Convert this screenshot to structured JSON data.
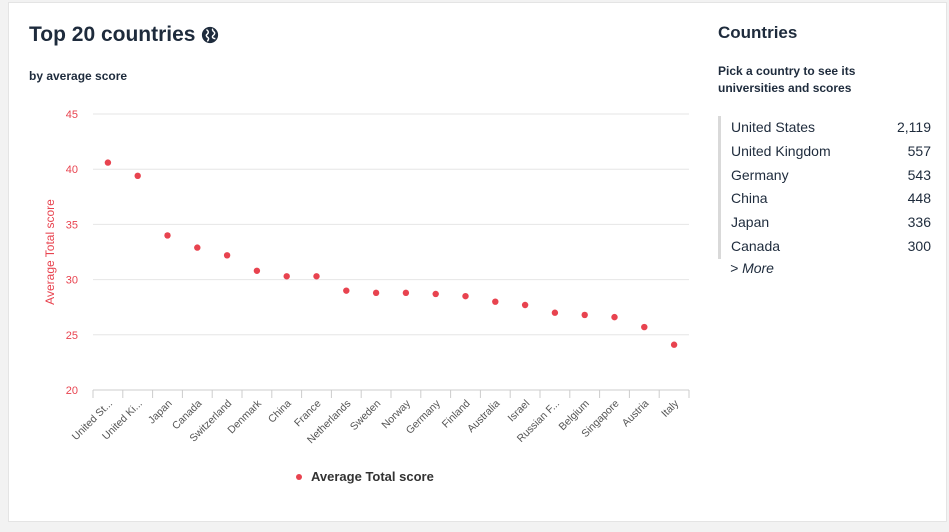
{
  "page": {
    "title": "Top 20 countries",
    "subtitle": "by average score"
  },
  "colors": {
    "accent": "#e8434f",
    "text": "#1e2b3c"
  },
  "chart_data": {
    "type": "scatter",
    "categories": [
      "United St...",
      "United Ki...",
      "Japan",
      "Canada",
      "Switzerland",
      "Denmark",
      "China",
      "France",
      "Netherlands",
      "Sweden",
      "Norway",
      "Germany",
      "Finland",
      "Australia",
      "Israel",
      "Russian F...",
      "Belgium",
      "Singapore",
      "Austria",
      "Italy"
    ],
    "series": [
      {
        "name": "Average Total score",
        "values": [
          40.6,
          39.4,
          34.0,
          32.9,
          32.2,
          30.8,
          30.3,
          30.3,
          29.0,
          28.8,
          28.8,
          28.7,
          28.5,
          28.0,
          27.7,
          27.0,
          26.8,
          26.6,
          25.7,
          24.1
        ]
      }
    ],
    "ylabel": "Average Total score",
    "yticks": [
      20,
      25,
      30,
      35,
      40,
      45
    ],
    "ylim": [
      20,
      45
    ],
    "grid": true,
    "legend": "bottom"
  },
  "sidebar": {
    "title": "Countries",
    "subtitle": "Pick a country to see its universities and scores",
    "items": [
      {
        "name": "United States",
        "count": "2,119"
      },
      {
        "name": "United Kingdom",
        "count": "557"
      },
      {
        "name": "Germany",
        "count": "543"
      },
      {
        "name": "China",
        "count": "448"
      },
      {
        "name": "Japan",
        "count": "336"
      },
      {
        "name": "Canada",
        "count": "300"
      }
    ],
    "more_label": "> More"
  },
  "icons": {
    "title_icon": "globe-icon"
  }
}
